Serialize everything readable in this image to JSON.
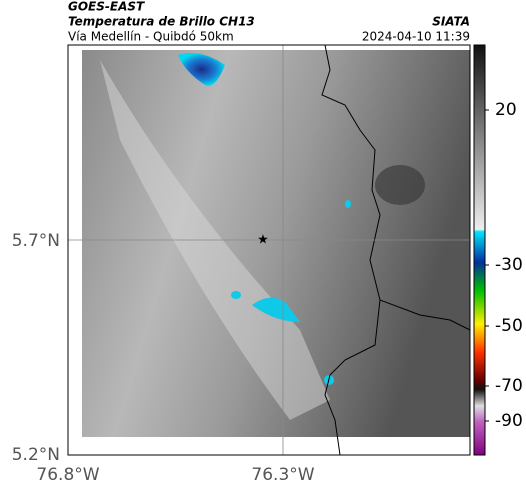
{
  "header": {
    "title": "GOES-EAST",
    "subtitle": "Temperatura de Brillo CH13",
    "route": "Vía Medellín - Quibdó 50km",
    "source": "SIATA",
    "timestamp": "2024-04-10 11:39"
  },
  "map": {
    "lat_labels": [
      "5.7°N",
      "5.2°N"
    ],
    "lon_labels": [
      "76.8°W",
      "76.3°W"
    ]
  },
  "colorbar": {
    "tick_labels": [
      "20",
      "-30",
      "-50",
      "-70",
      "-90"
    ]
  }
}
